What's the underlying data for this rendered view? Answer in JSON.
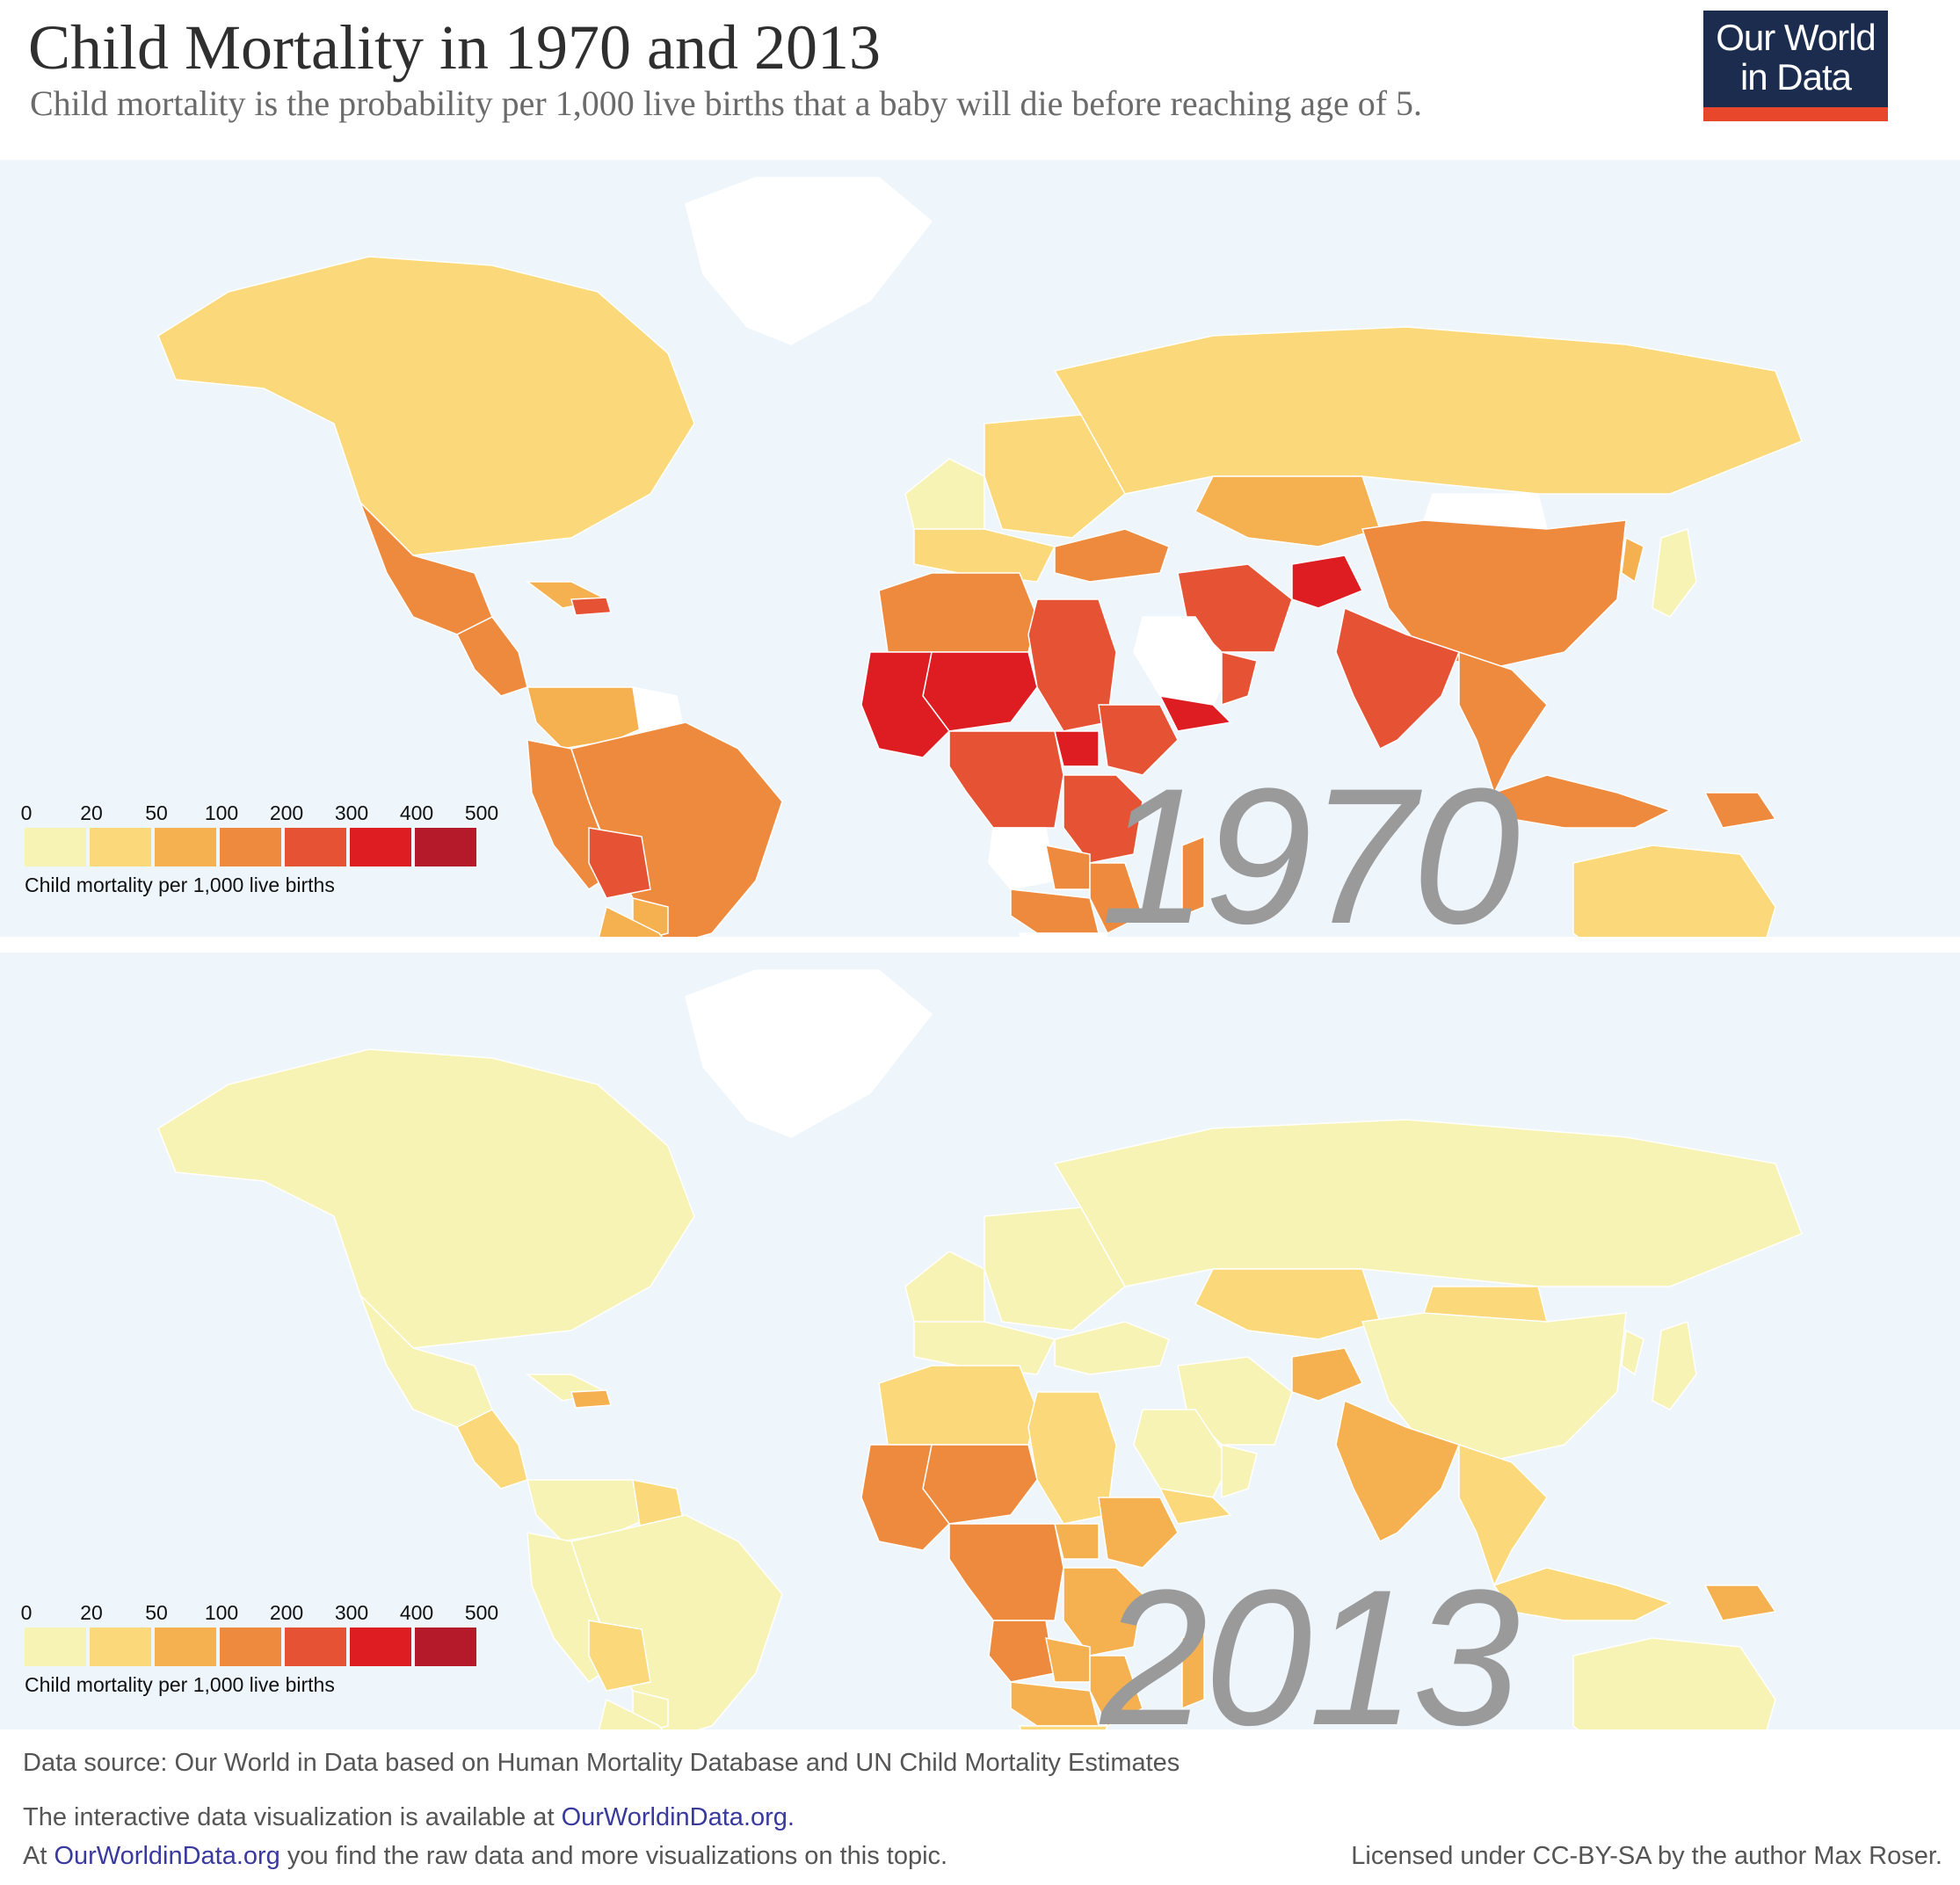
{
  "header": {
    "title": "Child Mortality in 1970 and 2013",
    "subtitle": "Child mortality is the probability per 1,000 live births that a baby will die before reaching age of 5."
  },
  "logo": {
    "line1": "Our World",
    "line2": "in Data"
  },
  "legend": {
    "ticks": [
      "0",
      "20",
      "50",
      "100",
      "200",
      "300",
      "400",
      "500"
    ],
    "title": "Child mortality per 1,000 live births",
    "colors": [
      "#f7f3b5",
      "#fbd97a",
      "#f5b050",
      "#ee8a3e",
      "#e55234",
      "#dd1d22",
      "#b51a2a"
    ]
  },
  "maps": [
    {
      "year": "1970",
      "categories": {
        "north_america": 1,
        "greenland": null,
        "mexico": 3,
        "central_america": 3,
        "haiti": 4,
        "caribbean": 2,
        "colombia_venezuela": 2,
        "peru_ecuador": 3,
        "brazil": 3,
        "bolivia": 4,
        "paraguay": 2,
        "southern_cone": 2,
        "guianas": null,
        "western_europe": 0,
        "southern_europe": 1,
        "eastern_europe": 1,
        "russia": 1,
        "turkey_caucasus": 3,
        "central_asia": 2,
        "iran": 4,
        "afghanistan": 5,
        "saudi_arabia": null,
        "yemen": 5,
        "oman": 4,
        "mongolia": null,
        "china": 3,
        "india": 4,
        "southeast_asia": 3,
        "indonesia": 3,
        "png": 3,
        "japan": 0,
        "korea": 2,
        "australia_nz": 1,
        "north_africa": 3,
        "sahel": 5,
        "west_africa": 5,
        "egypt_sudan": 4,
        "ethiopia": 4,
        "south_sudan": 5,
        "central_africa": 4,
        "east_africa": 4,
        "southern_africa": 3,
        "angola": null,
        "zambia": 3,
        "mozambique": 3,
        "south_africa": null,
        "madagascar": 3
      }
    },
    {
      "year": "2013",
      "categories": {
        "north_america": 0,
        "greenland": null,
        "mexico": 0,
        "central_america": 1,
        "haiti": 2,
        "caribbean": 0,
        "colombia_venezuela": 0,
        "peru_ecuador": 0,
        "brazil": 0,
        "bolivia": 1,
        "paraguay": 0,
        "southern_cone": 0,
        "guianas": 1,
        "western_europe": 0,
        "southern_europe": 0,
        "eastern_europe": 0,
        "russia": 0,
        "turkey_caucasus": 0,
        "central_asia": 1,
        "iran": 0,
        "afghanistan": 2,
        "saudi_arabia": 0,
        "yemen": 1,
        "oman": 0,
        "mongolia": 1,
        "china": 0,
        "india": 2,
        "southeast_asia": 1,
        "indonesia": 1,
        "png": 2,
        "japan": 0,
        "korea": 0,
        "australia_nz": 0,
        "north_africa": 1,
        "sahel": 3,
        "west_africa": 3,
        "egypt_sudan": 1,
        "ethiopia": 2,
        "south_sudan": 2,
        "central_africa": 3,
        "east_africa": 2,
        "southern_africa": 2,
        "angola": 3,
        "zambia": 2,
        "mozambique": 2,
        "south_africa": 1,
        "madagascar": 2
      }
    }
  ],
  "footer": {
    "source": "Data source: Our World in Data based on Human Mortality Database and UN Child Mortality Estimates",
    "line2_pre": "The interactive data visualization is available at ",
    "line2_link": "OurWorldinData.org.",
    "line3_pre": "At ",
    "line3_link": "OurWorldinData.org",
    "line3_post": " you find the raw data and more visualizations on this topic.",
    "license_pre": "Licensed under ",
    "license_link": "CC-BY-SA",
    "license_post": " by the author Max Roser."
  }
}
